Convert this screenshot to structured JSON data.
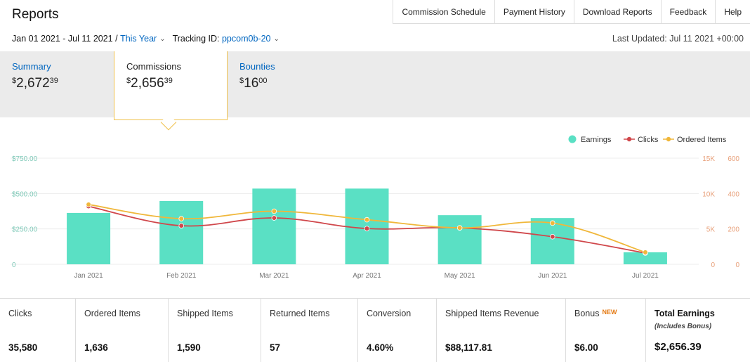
{
  "header": {
    "title": "Reports",
    "nav": [
      "Commission Schedule",
      "Payment History",
      "Download Reports",
      "Feedback",
      "Help"
    ]
  },
  "filters": {
    "date_range": "Jan 01 2021 - Jul 11 2021 /",
    "period": "This Year",
    "tracking_label": "Tracking ID:",
    "tracking_id": "ppcom0b-20",
    "last_updated": "Last Updated: Jul 11 2021 +00:00"
  },
  "tabs": {
    "summary": {
      "label": "Summary",
      "dollars": "2,672",
      "cents": "39"
    },
    "commissions": {
      "label": "Commissions",
      "dollars": "2,656",
      "cents": "39"
    },
    "bounties": {
      "label": "Bounties",
      "dollars": "16",
      "cents": "00"
    }
  },
  "chart_data": {
    "type": "bar",
    "categories": [
      "Jan 2021",
      "Feb 2021",
      "Mar 2021",
      "Apr 2021",
      "May 2021",
      "Jun 2021",
      "Jul 2021"
    ],
    "series": [
      {
        "name": "Earnings",
        "type": "bar",
        "axis": "left",
        "color": "#5ae0c4",
        "values": [
          363,
          447,
          535,
          535,
          347,
          327,
          85
        ]
      },
      {
        "name": "Clicks",
        "type": "line",
        "axis": "right1",
        "color": "#d0474b",
        "values": [
          8200,
          5450,
          6550,
          5050,
          5150,
          3900,
          1600
        ]
      },
      {
        "name": "Ordered Items",
        "type": "line",
        "axis": "right2",
        "color": "#f0b73a",
        "values": [
          338,
          258,
          300,
          252,
          206,
          233,
          68
        ]
      }
    ],
    "y_left": {
      "min": 0,
      "max": 750,
      "ticks": [
        "0",
        "$250.00",
        "$500.00",
        "$750.00"
      ]
    },
    "y_right1": {
      "min": 0,
      "max": 15000,
      "ticks": [
        "0",
        "5K",
        "10K",
        "15K"
      ],
      "color": "#e8a07a"
    },
    "y_right2": {
      "min": 0,
      "max": 600,
      "ticks": [
        "0",
        "200",
        "400",
        "600"
      ],
      "color": "#e8a07a"
    },
    "grid": true,
    "legend_position": "top-right"
  },
  "stats": [
    {
      "label": "Clicks",
      "value": "35,580"
    },
    {
      "label": "Ordered Items",
      "value": "1,636"
    },
    {
      "label": "Shipped Items",
      "value": "1,590"
    },
    {
      "label": "Returned Items",
      "value": "57"
    },
    {
      "label": "Conversion",
      "value": "4.60%"
    },
    {
      "label": "Shipped Items Revenue",
      "value": "$88,117.81"
    },
    {
      "label": "Bonus",
      "badge": "NEW",
      "value": "$6.00"
    },
    {
      "label": "Total Earnings",
      "sub": "(Includes Bonus)",
      "value": "$2,656.39"
    }
  ]
}
